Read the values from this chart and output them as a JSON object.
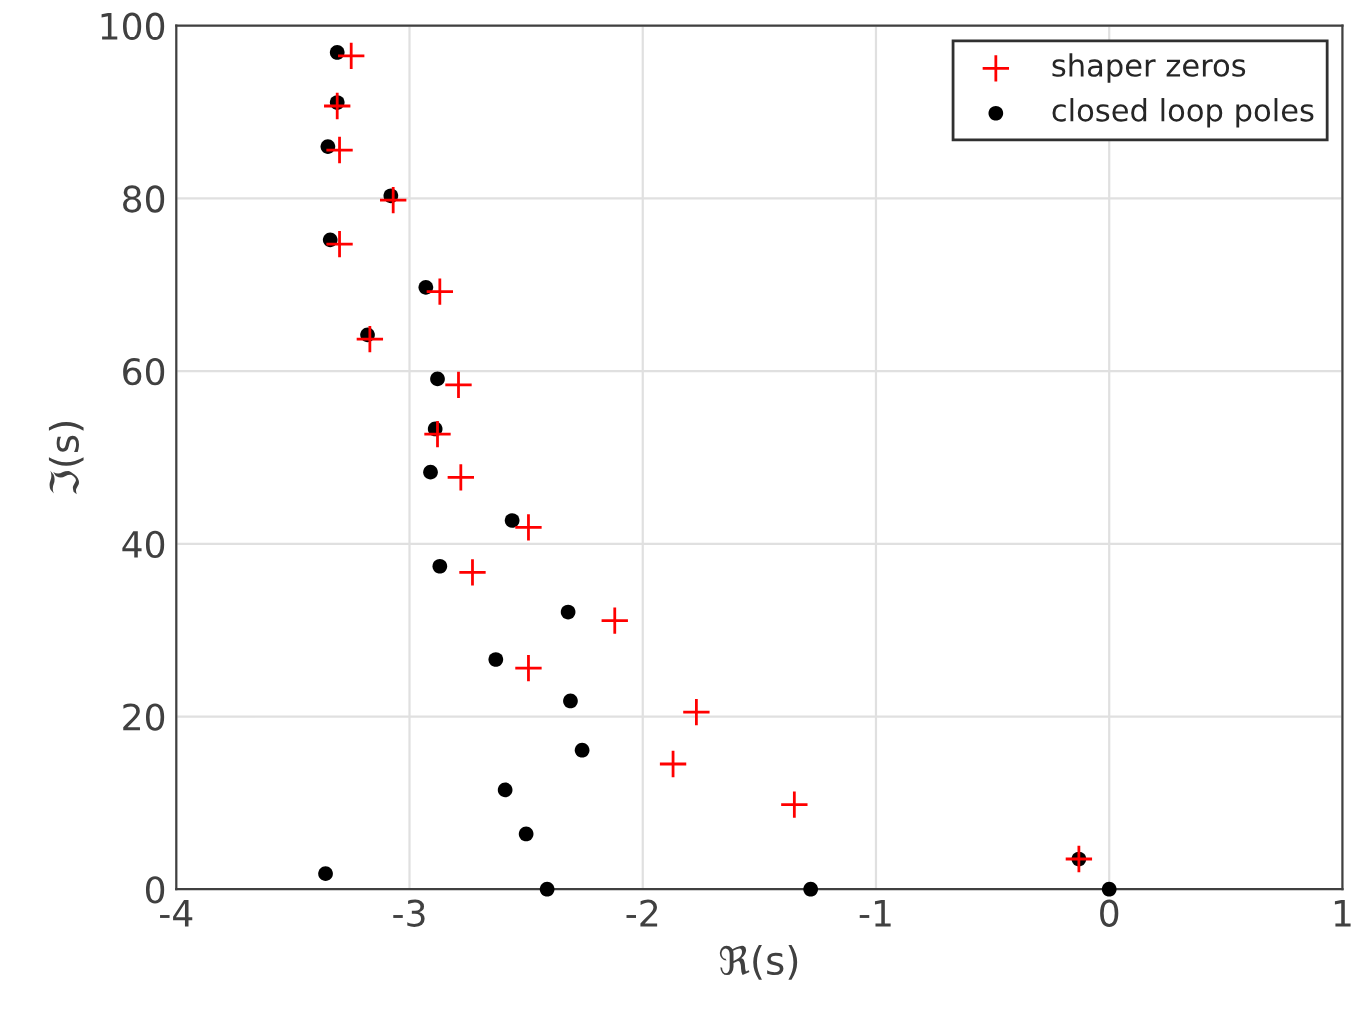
{
  "chart_data": {
    "type": "scatter",
    "xlabel": "ℜ(s)",
    "ylabel": "ℑ(s)",
    "xlim": [
      -4,
      1
    ],
    "xticks": [
      -4,
      -3,
      -2,
      -1,
      0,
      1
    ],
    "ylim": [
      0,
      100
    ],
    "yticks": [
      0,
      20,
      40,
      60,
      80,
      100
    ],
    "grid": true,
    "legend": "top right",
    "series": [
      {
        "name": "shaper zeros",
        "color": "#ff0000",
        "marker": "cross",
        "x": [
          -3.25,
          -3.31,
          -3.3,
          -3.07,
          -3.3,
          -2.87,
          -3.17,
          -2.79,
          -2.88,
          -2.78,
          -2.49,
          -2.73,
          -2.12,
          -2.49,
          -1.77,
          -1.87,
          -1.35,
          -0.13
        ],
        "values": [
          96.5,
          90.7,
          85.6,
          79.8,
          74.7,
          69.2,
          63.7,
          58.4,
          52.7,
          47.7,
          41.9,
          36.7,
          31.1,
          25.6,
          20.5,
          14.5,
          9.8,
          3.5
        ]
      },
      {
        "name": "closed loop poles",
        "color": "#000000",
        "marker": "circle",
        "x": [
          -3.31,
          -3.31,
          -3.35,
          -3.08,
          -3.34,
          -2.93,
          -3.18,
          -2.88,
          -2.89,
          -2.91,
          -2.56,
          -2.87,
          -2.32,
          -2.63,
          -2.31,
          -2.26,
          -2.59,
          -2.5,
          -3.36,
          -2.41,
          -1.28,
          -0.13,
          0.0
        ],
        "values": [
          96.9,
          91.1,
          86.0,
          80.3,
          75.2,
          69.7,
          64.2,
          59.1,
          53.3,
          48.3,
          42.7,
          37.4,
          32.1,
          26.6,
          21.8,
          16.1,
          11.5,
          6.4,
          1.8,
          0,
          0,
          3.5,
          0
        ]
      }
    ]
  }
}
